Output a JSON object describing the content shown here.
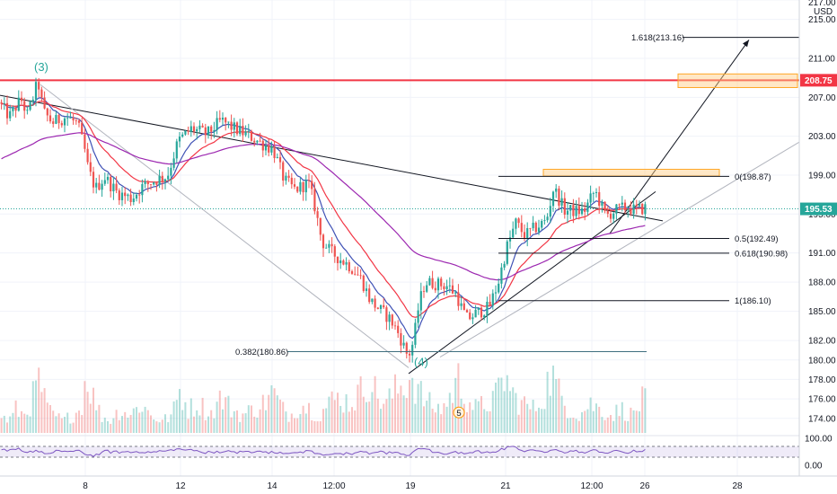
{
  "chart_data": {
    "type": "candlestick",
    "symbol_currency": "USD",
    "colors": {
      "up": "#26a69a",
      "down": "#ef5350",
      "ema_fast": "#3f51b5",
      "ema_mid": "#f23645",
      "ema_slow": "#9c27b0",
      "resistance": "#f23645",
      "fib": "#131722",
      "fib_alt": "#3f6f7f",
      "zone": "#ffcc80",
      "target_text": "#283593",
      "rsi": "#7e57c2"
    },
    "x_axis": {
      "tick_labels": [
        "8",
        "12",
        "14",
        "12:00",
        "19",
        "21",
        "12:00",
        "26",
        "28"
      ]
    },
    "y_axis": {
      "min": 172.5,
      "max": 217.0,
      "tick_labels": [
        "217.00",
        "215.00",
        "211.00",
        "207.00",
        "203.00",
        "199.00",
        "195.00",
        "191.00",
        "188.00",
        "185.00",
        "182.00",
        "180.00",
        "178.00",
        "176.00",
        "174.00"
      ],
      "tick_values": [
        217,
        215,
        211,
        207,
        203,
        199,
        195,
        191,
        188,
        185,
        182,
        180,
        178,
        176,
        174
      ],
      "unit_label": "USD"
    },
    "price_tags": [
      {
        "label": "208.75",
        "value": 208.75,
        "color": "#f23645"
      },
      {
        "label": "195.53",
        "value": 195.53,
        "color": "#26a69a"
      }
    ],
    "fib_levels": [
      {
        "label": "0(198.87)",
        "value": 198.87
      },
      {
        "label": "0.5(192.49)",
        "value": 192.49
      },
      {
        "label": "0.618(190.98)",
        "value": 190.98
      },
      {
        "label": "1(186.10)",
        "value": 186.1
      },
      {
        "label": "0.382(180.86)",
        "value": 180.86
      },
      {
        "label": "1.618(213.16)",
        "value": 213.16
      }
    ],
    "wave_labels": [
      {
        "label": "(3)",
        "value": 208.6
      },
      {
        "label": "(4)",
        "value": 179.4
      },
      {
        "label": "5",
        "value": 174.6
      }
    ],
    "rsi": {
      "tick_labels": [
        "100.00",
        "0.00"
      ],
      "tick_values": [
        100,
        0
      ],
      "band_upper": 70,
      "band_lower": 30
    },
    "price_path": [
      [
        0,
        206.5
      ],
      [
        12,
        205
      ],
      [
        25,
        206.8
      ],
      [
        32,
        205.2
      ],
      [
        44,
        208.6
      ],
      [
        50,
        205.5
      ],
      [
        60,
        204.4
      ],
      [
        75,
        205
      ],
      [
        88,
        204.3
      ],
      [
        96,
        201.5
      ],
      [
        100,
        199.5
      ],
      [
        108,
        197.6
      ],
      [
        118,
        198.8
      ],
      [
        132,
        197.2
      ],
      [
        148,
        196.6
      ],
      [
        160,
        197.8
      ],
      [
        175,
        198.5
      ],
      [
        188,
        198.9
      ],
      [
        200,
        202.5
      ],
      [
        215,
        203.8
      ],
      [
        232,
        203.2
      ],
      [
        248,
        204.6
      ],
      [
        262,
        203.8
      ],
      [
        280,
        203
      ],
      [
        294,
        202.2
      ],
      [
        306,
        201.6
      ],
      [
        318,
        198.5
      ],
      [
        330,
        197.5
      ],
      [
        345,
        198.2
      ],
      [
        352,
        195.8
      ],
      [
        360,
        192.2
      ],
      [
        370,
        191.1
      ],
      [
        380,
        190.4
      ],
      [
        392,
        189.6
      ],
      [
        404,
        188.3
      ],
      [
        414,
        186.1
      ],
      [
        424,
        185.2
      ],
      [
        436,
        184.2
      ],
      [
        446,
        182.6
      ],
      [
        456,
        180.3
      ],
      [
        462,
        181.9
      ],
      [
        468,
        185.7
      ],
      [
        475,
        188
      ],
      [
        490,
        187.8
      ],
      [
        500,
        187.6
      ],
      [
        510,
        186.7
      ],
      [
        516,
        185.2
      ],
      [
        522,
        184.2
      ],
      [
        532,
        184.8
      ],
      [
        546,
        185.4
      ],
      [
        556,
        187.8
      ],
      [
        566,
        191.6
      ],
      [
        576,
        194.1
      ],
      [
        586,
        192.8
      ],
      [
        598,
        193.6
      ],
      [
        610,
        194.3
      ],
      [
        618,
        197.7
      ],
      [
        630,
        195.4
      ],
      [
        642,
        195.3
      ],
      [
        652,
        195.3
      ],
      [
        664,
        197.4
      ],
      [
        676,
        194.8
      ],
      [
        688,
        195.4
      ],
      [
        700,
        195.7
      ],
      [
        708,
        195.4
      ],
      [
        718,
        195.6
      ]
    ],
    "volume_profile": [
      [
        0,
        0.3
      ],
      [
        10,
        0.2
      ],
      [
        18,
        0.4
      ],
      [
        26,
        0.3
      ],
      [
        34,
        0.5
      ],
      [
        44,
        0.9
      ],
      [
        52,
        0.4
      ],
      [
        60,
        0.3
      ],
      [
        70,
        0.2
      ],
      [
        80,
        0.3
      ],
      [
        90,
        0.4
      ],
      [
        96,
        1.0
      ],
      [
        104,
        0.6
      ],
      [
        112,
        0.3
      ],
      [
        122,
        0.2
      ],
      [
        134,
        0.4
      ],
      [
        146,
        0.3
      ],
      [
        156,
        0.5
      ],
      [
        168,
        0.3
      ],
      [
        180,
        0.2
      ],
      [
        192,
        0.3
      ],
      [
        200,
        0.7
      ],
      [
        210,
        0.4
      ],
      [
        222,
        0.5
      ],
      [
        234,
        0.3
      ],
      [
        246,
        0.6
      ],
      [
        258,
        0.4
      ],
      [
        270,
        0.3
      ],
      [
        282,
        0.4
      ],
      [
        294,
        0.5
      ],
      [
        304,
        0.7
      ],
      [
        314,
        0.4
      ],
      [
        324,
        0.3
      ],
      [
        334,
        0.5
      ],
      [
        346,
        0.4
      ],
      [
        356,
        0.3
      ],
      [
        366,
        0.5
      ],
      [
        378,
        0.6
      ],
      [
        390,
        0.5
      ],
      [
        402,
        0.7
      ],
      [
        412,
        0.95
      ],
      [
        420,
        0.6
      ],
      [
        430,
        0.5
      ],
      [
        440,
        0.7
      ],
      [
        450,
        0.8
      ],
      [
        458,
        1.0
      ],
      [
        466,
        0.7
      ],
      [
        476,
        0.5
      ],
      [
        488,
        0.4
      ],
      [
        498,
        0.5
      ],
      [
        510,
        0.9
      ],
      [
        520,
        0.6
      ],
      [
        530,
        0.4
      ],
      [
        542,
        0.5
      ],
      [
        552,
        0.6
      ],
      [
        562,
        0.95
      ],
      [
        572,
        0.6
      ],
      [
        582,
        0.5
      ],
      [
        594,
        0.4
      ],
      [
        604,
        0.6
      ],
      [
        614,
        1.0
      ],
      [
        624,
        0.6
      ],
      [
        634,
        0.4
      ],
      [
        646,
        0.3
      ],
      [
        656,
        0.5
      ],
      [
        668,
        0.4
      ],
      [
        680,
        0.3
      ],
      [
        692,
        0.4
      ],
      [
        704,
        0.3
      ],
      [
        718,
        0.6
      ]
    ]
  }
}
